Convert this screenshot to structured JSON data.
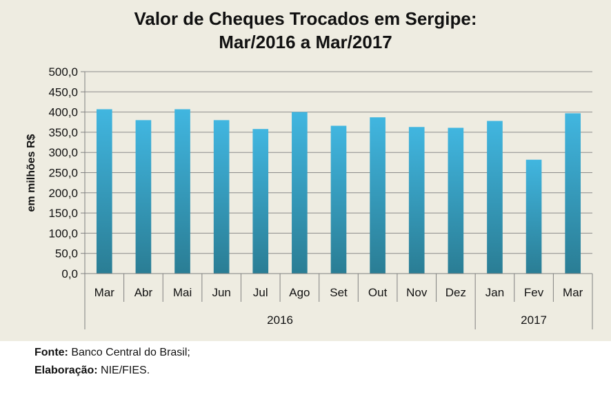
{
  "chart_data": {
    "type": "bar",
    "title_line1": "Valor de Cheques Trocados em Sergipe:",
    "title_line2": "Mar/2016 a  Mar/2017",
    "ylabel": "em milhões R$",
    "xlabel": "",
    "ylim": [
      0,
      500
    ],
    "yticks": [
      "0,0",
      "50,0",
      "100,0",
      "150,0",
      "200,0",
      "250,0",
      "300,0",
      "350,0",
      "400,0",
      "450,0",
      "500,0"
    ],
    "categories": [
      "Mar",
      "Abr",
      "Mai",
      "Jun",
      "Jul",
      "Ago",
      "Set",
      "Out",
      "Nov",
      "Dez",
      "Jan",
      "Fev",
      "Mar"
    ],
    "values": [
      407,
      380,
      407,
      380,
      358,
      400,
      366,
      387,
      363,
      361,
      378,
      282,
      397
    ],
    "groups": [
      {
        "label": "2016",
        "count": 10
      },
      {
        "label": "2017",
        "count": 3
      }
    ],
    "grid": true,
    "legend": "none"
  },
  "colors": {
    "background": "#eeece1",
    "bar_top": "#41b6e0",
    "bar_bottom": "#2a7d94",
    "grid": "#8a8a8a",
    "axis": "#7f7f7f"
  },
  "footer": {
    "source_label": "Fonte:",
    "source_text": " Banco Central do Brasil;",
    "elab_label": "Elaboração:",
    "elab_text": " NIE/FIES."
  }
}
